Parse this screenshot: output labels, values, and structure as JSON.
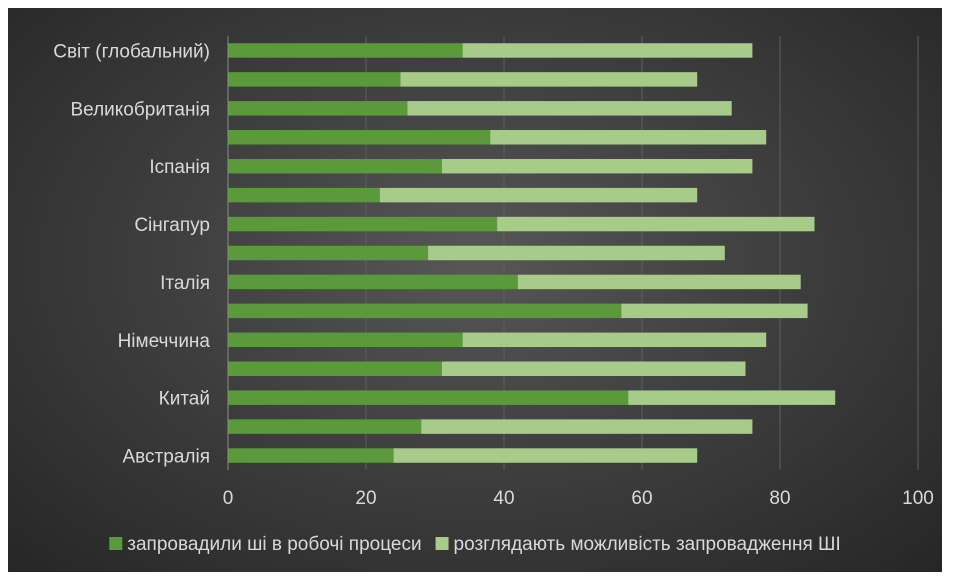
{
  "chart_data": {
    "type": "bar",
    "orientation": "horizontal",
    "stacked": true,
    "categories": [
      "Австралія",
      "",
      "Китай",
      "",
      "Німеччина",
      "",
      "Італія",
      "",
      "Сінгапур",
      "",
      "Іспанія",
      "",
      "Великобританія",
      "",
      "Світ (глобальний)"
    ],
    "series": [
      {
        "name": "запровадили ші в робочі процеси",
        "color": "#5b9a3a",
        "values": [
          24,
          28,
          58,
          31,
          34,
          57,
          42,
          29,
          39,
          22,
          31,
          38,
          26,
          25,
          34
        ]
      },
      {
        "name": "розглядають можливість запровадження ШІ",
        "color": "#a7cc8a",
        "values": [
          44,
          48,
          30,
          44,
          44,
          27,
          41,
          43,
          46,
          46,
          45,
          40,
          47,
          43,
          42
        ]
      }
    ],
    "xlim": [
      0,
      100
    ],
    "x_ticks": [
      0,
      20,
      40,
      60,
      80,
      100
    ],
    "grid": "vertical",
    "legend": "bottom"
  }
}
